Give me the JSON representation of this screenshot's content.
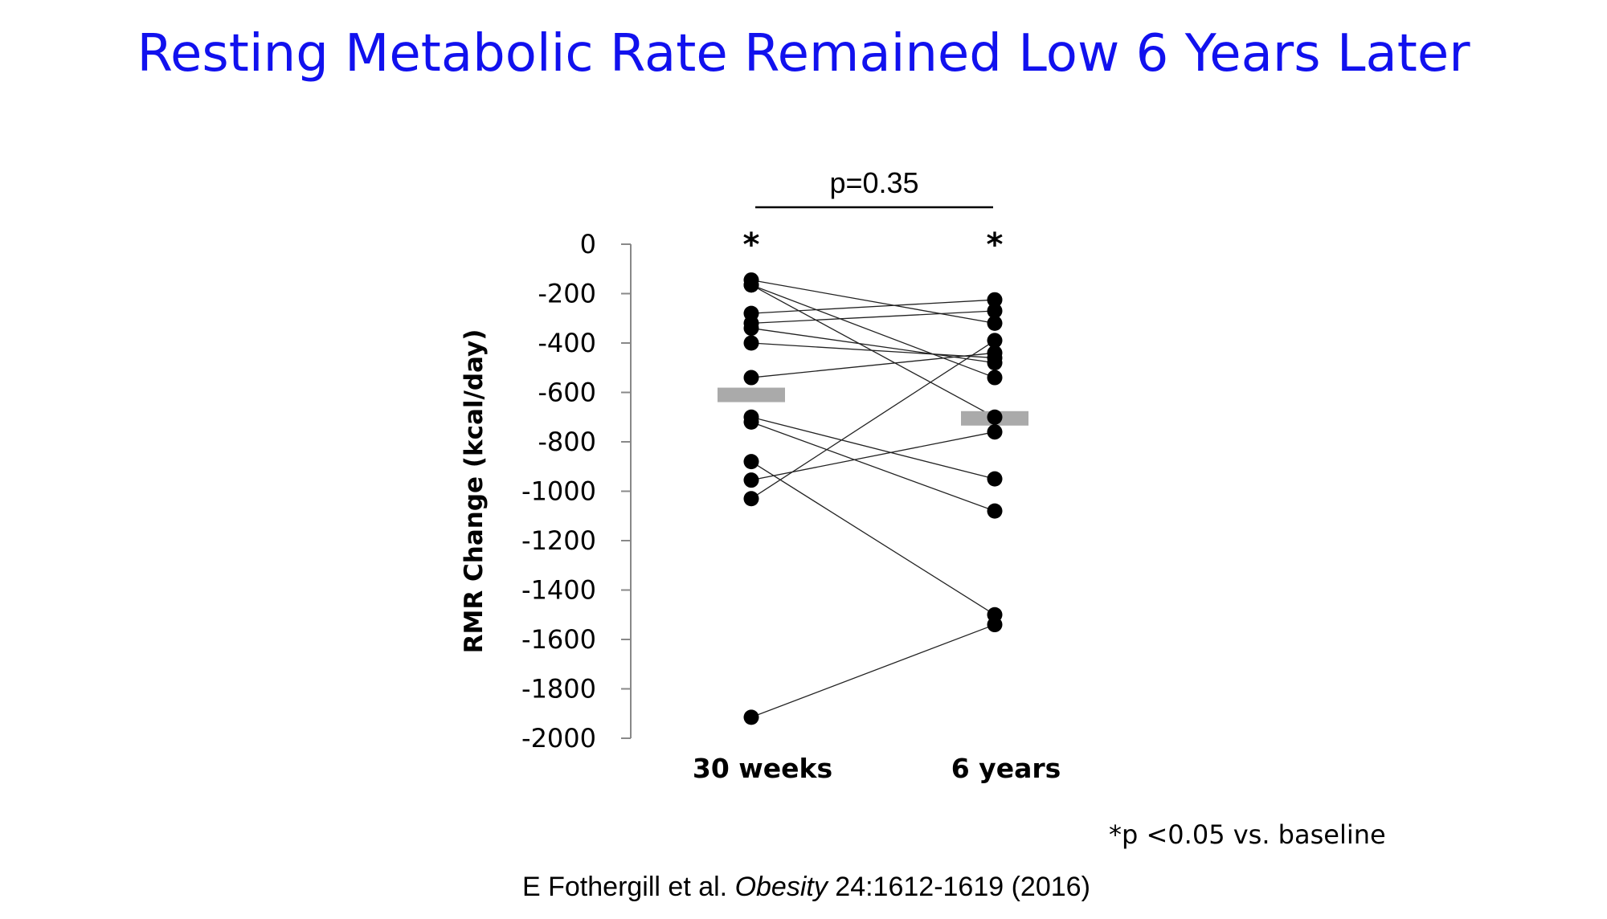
{
  "slide": {
    "title": "Resting Metabolic Rate Remained Low 6 Years Later",
    "significance_note": "*p <0.05 vs. baseline",
    "citation": {
      "authors": "E Fothergill et al.",
      "journal": "Obesity",
      "details": "24:1612-1619 (2016)"
    }
  },
  "colors": {
    "title": "#1111ee",
    "mean_bar": "#aaaaaa",
    "points": "#000000"
  },
  "chart_data": {
    "type": "scatter",
    "ylabel": "RMR Change (kcal/day)",
    "xlabel": "",
    "categories": [
      "30 weeks",
      "6 years"
    ],
    "ylim": [
      -2000,
      0
    ],
    "yticks": [
      0,
      -200,
      -400,
      -600,
      -800,
      -1000,
      -1200,
      -1400,
      -1600,
      -1800,
      -2000
    ],
    "grid": false,
    "comparison": {
      "label": "p=0.35"
    },
    "significance_markers": [
      "*",
      "*"
    ],
    "means": [
      -610,
      -705
    ],
    "paired_values": [
      [
        -145,
        -320
      ],
      [
        -165,
        -540
      ],
      [
        -165,
        -700
      ],
      [
        -280,
        -225
      ],
      [
        -320,
        -270
      ],
      [
        -340,
        -480
      ],
      [
        -400,
        -460
      ],
      [
        -540,
        -440
      ],
      [
        -700,
        -950
      ],
      [
        -720,
        -1080
      ],
      [
        -880,
        -1500
      ],
      [
        -955,
        -760
      ],
      [
        -1030,
        -390
      ],
      [
        -1915,
        -1540
      ]
    ]
  }
}
